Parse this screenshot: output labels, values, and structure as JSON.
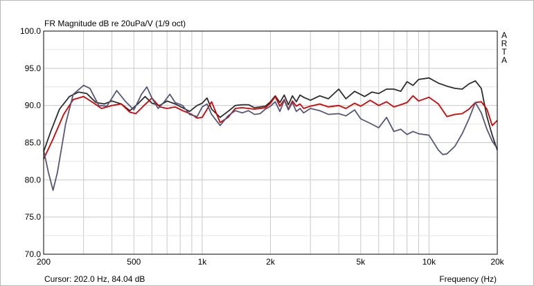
{
  "window": {
    "watermark": [
      "A",
      "R",
      "T",
      "A"
    ],
    "cursor_readout": "Cursor: 202.0 Hz, 84.04 dB"
  },
  "chart_data": {
    "type": "line",
    "title": "FR Magnitude dB re 20uPa/V (1/9 oct)",
    "xlabel": "Frequency (Hz)",
    "ylabel": "",
    "x_scale": "log",
    "xlim": [
      200,
      20000
    ],
    "ylim": [
      70,
      100
    ],
    "x_ticks": [
      {
        "value": 200,
        "label": "200"
      },
      {
        "value": 500,
        "label": "500"
      },
      {
        "value": 1000,
        "label": "1k"
      },
      {
        "value": 2000,
        "label": "2k"
      },
      {
        "value": 5000,
        "label": "5k"
      },
      {
        "value": 10000,
        "label": "10k"
      },
      {
        "value": 20000,
        "label": "20k"
      }
    ],
    "y_ticks": [
      {
        "value": 70,
        "label": "70.0"
      },
      {
        "value": 75,
        "label": "75.0"
      },
      {
        "value": 80,
        "label": "80.0"
      },
      {
        "value": 85,
        "label": "85.0"
      },
      {
        "value": 90,
        "label": "90.0"
      },
      {
        "value": 95,
        "label": "95.0"
      },
      {
        "value": 100,
        "label": "100.0"
      }
    ],
    "grid": true,
    "series": [
      {
        "color": "#2c2c2c",
        "points": [
          [
            200,
            83.8
          ],
          [
            215,
            86.5
          ],
          [
            235,
            89.5
          ],
          [
            260,
            91.2
          ],
          [
            285,
            91.8
          ],
          [
            310,
            91.6
          ],
          [
            340,
            90.4
          ],
          [
            370,
            90.2
          ],
          [
            400,
            90.6
          ],
          [
            440,
            90.2
          ],
          [
            480,
            89.3
          ],
          [
            520,
            90.2
          ],
          [
            560,
            91.2
          ],
          [
            600,
            90.3
          ],
          [
            650,
            90.0
          ],
          [
            700,
            90.6
          ],
          [
            760,
            90.2
          ],
          [
            820,
            89.7
          ],
          [
            880,
            89.2
          ],
          [
            950,
            90.0
          ],
          [
            1000,
            90.3
          ],
          [
            1050,
            91.0
          ],
          [
            1100,
            89.5
          ],
          [
            1200,
            88.4
          ],
          [
            1300,
            89.2
          ],
          [
            1400,
            90.0
          ],
          [
            1500,
            90.1
          ],
          [
            1600,
            90.1
          ],
          [
            1700,
            89.7
          ],
          [
            1800,
            89.8
          ],
          [
            1900,
            89.9
          ],
          [
            2000,
            90.5
          ],
          [
            2100,
            91.3
          ],
          [
            2200,
            90.4
          ],
          [
            2300,
            91.4
          ],
          [
            2400,
            90.1
          ],
          [
            2500,
            91.3
          ],
          [
            2600,
            90.5
          ],
          [
            2700,
            91.4
          ],
          [
            2800,
            91.1
          ],
          [
            3000,
            90.7
          ],
          [
            3300,
            91.3
          ],
          [
            3600,
            90.9
          ],
          [
            4000,
            92.2
          ],
          [
            4300,
            90.9
          ],
          [
            4700,
            91.9
          ],
          [
            5200,
            91.2
          ],
          [
            5600,
            91.8
          ],
          [
            6000,
            91.6
          ],
          [
            6500,
            92.2
          ],
          [
            7000,
            92.2
          ],
          [
            7500,
            91.9
          ],
          [
            8000,
            93.2
          ],
          [
            8500,
            92.7
          ],
          [
            9000,
            93.5
          ],
          [
            10000,
            93.7
          ],
          [
            11000,
            93.0
          ],
          [
            12000,
            92.6
          ],
          [
            13000,
            92.3
          ],
          [
            14000,
            92.2
          ],
          [
            15000,
            92.9
          ],
          [
            16000,
            93.3
          ],
          [
            17000,
            92.3
          ],
          [
            18000,
            88.5
          ],
          [
            19000,
            86.0
          ],
          [
            20000,
            84.0
          ]
        ]
      },
      {
        "color": "#d40000",
        "points": [
          [
            200,
            82.8
          ],
          [
            220,
            85.5
          ],
          [
            245,
            88.8
          ],
          [
            270,
            90.8
          ],
          [
            300,
            91.2
          ],
          [
            330,
            90.4
          ],
          [
            360,
            89.6
          ],
          [
            400,
            90.0
          ],
          [
            440,
            90.2
          ],
          [
            480,
            89.1
          ],
          [
            510,
            88.9
          ],
          [
            550,
            89.9
          ],
          [
            600,
            91.0
          ],
          [
            650,
            89.8
          ],
          [
            700,
            89.6
          ],
          [
            760,
            89.8
          ],
          [
            820,
            89.3
          ],
          [
            900,
            88.8
          ],
          [
            950,
            88.3
          ],
          [
            1000,
            88.4
          ],
          [
            1100,
            90.5
          ],
          [
            1200,
            87.7
          ],
          [
            1300,
            88.4
          ],
          [
            1400,
            89.6
          ],
          [
            1500,
            89.7
          ],
          [
            1600,
            89.6
          ],
          [
            1700,
            89.5
          ],
          [
            1800,
            89.6
          ],
          [
            1900,
            89.7
          ],
          [
            2000,
            90.3
          ],
          [
            2100,
            91.2
          ],
          [
            2200,
            89.9
          ],
          [
            2300,
            90.8
          ],
          [
            2400,
            89.5
          ],
          [
            2500,
            90.6
          ],
          [
            2600,
            89.9
          ],
          [
            2700,
            90.2
          ],
          [
            2800,
            89.6
          ],
          [
            3000,
            89.9
          ],
          [
            3300,
            90.2
          ],
          [
            3600,
            89.8
          ],
          [
            4000,
            90.0
          ],
          [
            4300,
            89.6
          ],
          [
            4700,
            90.3
          ],
          [
            5000,
            89.9
          ],
          [
            5500,
            90.7
          ],
          [
            6000,
            90.0
          ],
          [
            6500,
            90.5
          ],
          [
            7000,
            89.8
          ],
          [
            7500,
            90.1
          ],
          [
            8000,
            90.4
          ],
          [
            8500,
            91.3
          ],
          [
            9000,
            90.6
          ],
          [
            10000,
            91.1
          ],
          [
            11000,
            90.2
          ],
          [
            12000,
            88.5
          ],
          [
            13000,
            88.8
          ],
          [
            14000,
            88.9
          ],
          [
            15000,
            89.5
          ],
          [
            16000,
            90.4
          ],
          [
            17000,
            90.5
          ],
          [
            18000,
            89.5
          ],
          [
            19000,
            87.3
          ],
          [
            20000,
            88.0
          ]
        ]
      },
      {
        "color": "#555577",
        "points": [
          [
            200,
            84.0
          ],
          [
            210,
            81.0
          ],
          [
            220,
            78.6
          ],
          [
            230,
            81.0
          ],
          [
            250,
            87.5
          ],
          [
            270,
            91.5
          ],
          [
            300,
            92.7
          ],
          [
            320,
            92.3
          ],
          [
            350,
            90.0
          ],
          [
            380,
            89.9
          ],
          [
            420,
            92.0
          ],
          [
            460,
            90.5
          ],
          [
            500,
            89.4
          ],
          [
            540,
            91.5
          ],
          [
            570,
            92.5
          ],
          [
            600,
            91.0
          ],
          [
            640,
            89.6
          ],
          [
            680,
            90.5
          ],
          [
            720,
            91.5
          ],
          [
            760,
            90.4
          ],
          [
            820,
            90.0
          ],
          [
            880,
            88.8
          ],
          [
            950,
            88.5
          ],
          [
            1000,
            89.8
          ],
          [
            1050,
            90.2
          ],
          [
            1100,
            88.8
          ],
          [
            1200,
            87.3
          ],
          [
            1300,
            88.6
          ],
          [
            1400,
            89.3
          ],
          [
            1500,
            89.0
          ],
          [
            1600,
            89.3
          ],
          [
            1700,
            88.8
          ],
          [
            1800,
            88.9
          ],
          [
            1900,
            89.5
          ],
          [
            2000,
            89.9
          ],
          [
            2100,
            90.5
          ],
          [
            2200,
            89.2
          ],
          [
            2300,
            90.7
          ],
          [
            2400,
            89.4
          ],
          [
            2500,
            90.4
          ],
          [
            2600,
            89.2
          ],
          [
            2700,
            89.6
          ],
          [
            2800,
            89.0
          ],
          [
            3000,
            89.6
          ],
          [
            3300,
            89.3
          ],
          [
            3600,
            88.8
          ],
          [
            4000,
            88.9
          ],
          [
            4300,
            88.6
          ],
          [
            4700,
            89.4
          ],
          [
            5000,
            88.2
          ],
          [
            5500,
            87.6
          ],
          [
            6000,
            87.0
          ],
          [
            6500,
            88.4
          ],
          [
            7000,
            86.5
          ],
          [
            7500,
            86.8
          ],
          [
            8000,
            86.1
          ],
          [
            8500,
            86.5
          ],
          [
            9000,
            86.2
          ],
          [
            10000,
            86.0
          ],
          [
            11000,
            84.0
          ],
          [
            11500,
            83.4
          ],
          [
            12000,
            83.5
          ],
          [
            13000,
            84.5
          ],
          [
            14000,
            86.2
          ],
          [
            15000,
            88.2
          ],
          [
            16000,
            90.4
          ],
          [
            17000,
            89.0
          ],
          [
            18000,
            86.8
          ],
          [
            19000,
            85.2
          ],
          [
            20000,
            84.2
          ]
        ]
      }
    ]
  }
}
